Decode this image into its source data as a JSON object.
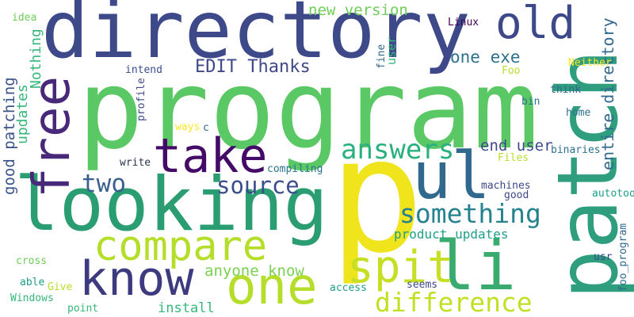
{
  "colors": {
    "background": "#ffffff",
    "palette": [
      "#fde725",
      "#b5de2b",
      "#6ece58",
      "#35b779",
      "#1f9e89",
      "#26828e",
      "#31688e",
      "#3e4989",
      "#482878",
      "#440154"
    ]
  },
  "words": [
    {
      "text": "directory",
      "color": "#3e4989"
    },
    {
      "text": "program",
      "color": "#5ac864"
    },
    {
      "text": "p",
      "color": "#f0e41c"
    },
    {
      "text": "patch",
      "color": "#2e9e7e"
    },
    {
      "text": "looking",
      "color": "#2a9d72"
    },
    {
      "text": "ul",
      "color": "#31688e"
    },
    {
      "text": "free",
      "color": "#482878"
    },
    {
      "text": "take",
      "color": "#440a68"
    },
    {
      "text": "old",
      "color": "#3e4989"
    },
    {
      "text": "compare",
      "color": "#b5de2b"
    },
    {
      "text": "know",
      "color": "#3e3a80"
    },
    {
      "text": "one",
      "color": "#b5de2b"
    },
    {
      "text": "li",
      "color": "#3aab6e"
    },
    {
      "text": "spit",
      "color": "#c6de24"
    },
    {
      "text": "answers",
      "color": "#2ab07f"
    },
    {
      "text": "something",
      "color": "#26828e"
    },
    {
      "text": "difference",
      "color": "#c2df23"
    },
    {
      "text": "source",
      "color": "#3b4d8a"
    },
    {
      "text": "two",
      "color": "#3b5f8e"
    },
    {
      "text": "EDIT Thanks",
      "color": "#3e4989"
    },
    {
      "text": "one exe",
      "color": "#2c728e"
    },
    {
      "text": "new version",
      "color": "#6ece58"
    },
    {
      "text": "end user",
      "color": "#3e4989"
    },
    {
      "text": "entire directory",
      "color": "#31688e"
    },
    {
      "text": "anyone know",
      "color": "#7ad151"
    },
    {
      "text": "product updates",
      "color": "#1f9e89"
    },
    {
      "text": "good patching",
      "color": "#3a538b"
    },
    {
      "text": "updates",
      "color": "#35b779"
    },
    {
      "text": "Nothing",
      "color": "#35b779"
    },
    {
      "text": "install",
      "color": "#35b779"
    },
    {
      "text": "user",
      "color": "#35b779"
    },
    {
      "text": "fine",
      "color": "#31688e"
    },
    {
      "text": "intend",
      "color": "#3b4d8a"
    },
    {
      "text": "profile",
      "color": "#3e4989"
    },
    {
      "text": "ways",
      "color": "#fde725"
    },
    {
      "text": "c",
      "color": "#31688e"
    },
    {
      "text": "write",
      "color": "#26324d"
    },
    {
      "text": "compiling",
      "color": "#2c728e"
    },
    {
      "text": "Linux",
      "color": "#440154"
    },
    {
      "text": "Foo",
      "color": "#b5de2b"
    },
    {
      "text": "Neither",
      "color": "#fde725"
    },
    {
      "text": "think",
      "color": "#31688e"
    },
    {
      "text": "bin",
      "color": "#2c728e"
    },
    {
      "text": "home",
      "color": "#2c728e"
    },
    {
      "text": "binaries",
      "color": "#2c728e"
    },
    {
      "text": "Files",
      "color": "#b5de2b"
    },
    {
      "text": "machines",
      "color": "#3e4989"
    },
    {
      "text": "good",
      "color": "#3e4989"
    },
    {
      "text": "autotools",
      "color": "#1f9e89"
    },
    {
      "text": "idea",
      "color": "#6ece58"
    },
    {
      "text": "cross",
      "color": "#6ece58"
    },
    {
      "text": "able",
      "color": "#1f9e89"
    },
    {
      "text": "Give",
      "color": "#b5de2b"
    },
    {
      "text": "Windows",
      "color": "#35b779"
    },
    {
      "text": "point",
      "color": "#35b779"
    },
    {
      "text": "access",
      "color": "#1f9e89"
    },
    {
      "text": "seems",
      "color": "#3e4989"
    },
    {
      "text": "usr",
      "color": "#3e4989"
    },
    {
      "text": "foo_program",
      "color": "#31688e"
    }
  ]
}
